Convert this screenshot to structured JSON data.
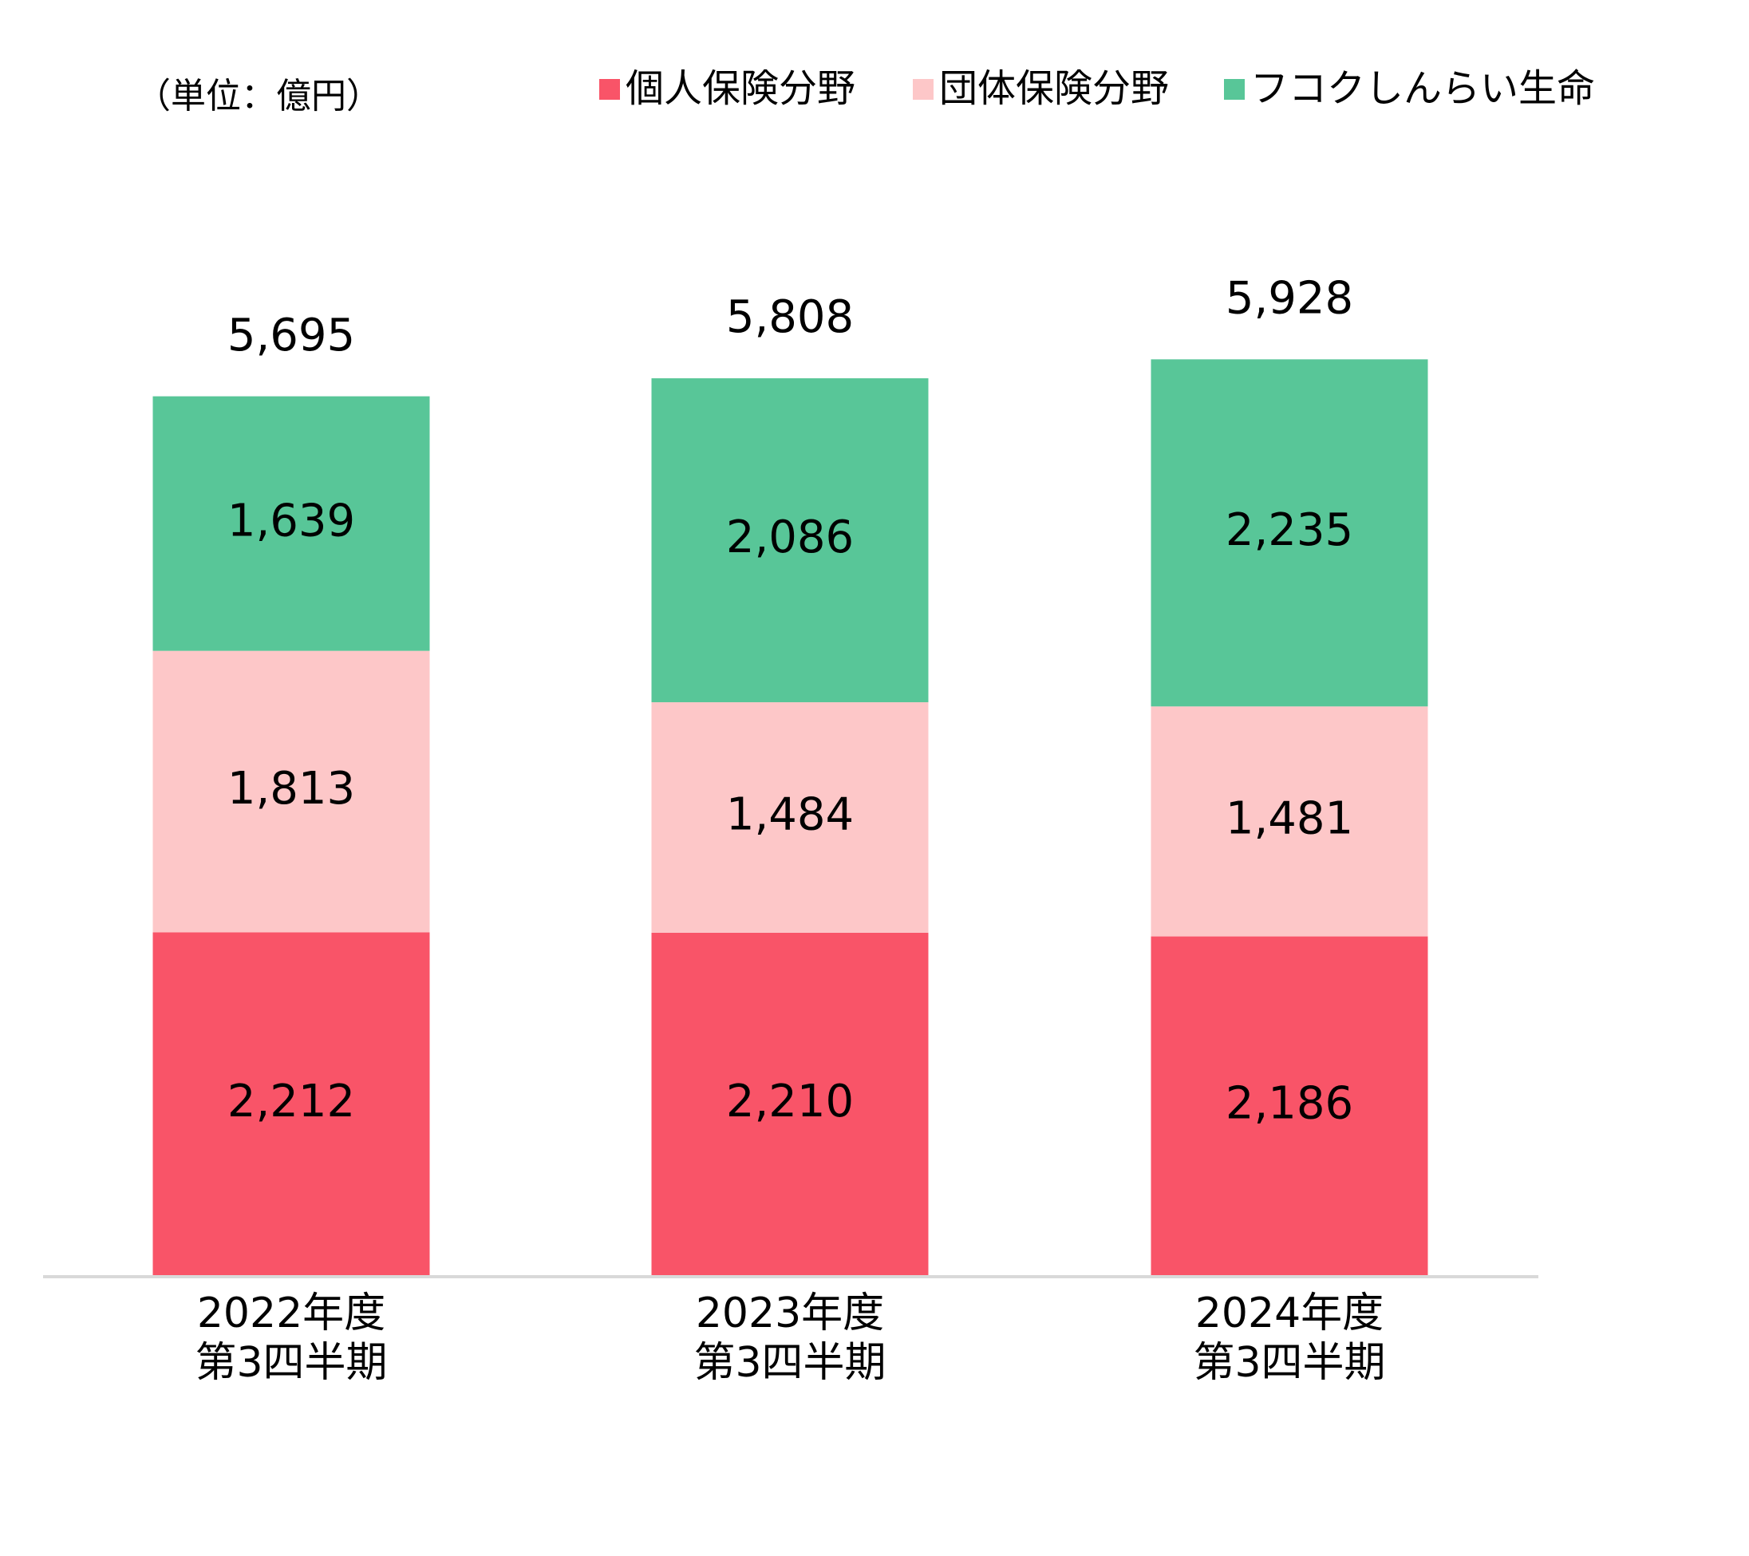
{
  "chart_data": {
    "type": "stacked-bar",
    "unit_label": "（単位：億円）",
    "categories": [
      "2022年度\n第3四半期",
      "2023年度\n第3四半期",
      "2024年度\n第3四半期"
    ],
    "series": [
      {
        "name": "個人保険分野",
        "color": "#f95468",
        "values": [
          2212,
          2210,
          2186
        ],
        "value_labels": [
          "2,212",
          "2,210",
          "2,186"
        ]
      },
      {
        "name": "団体保険分野",
        "color": "#fdc7c8",
        "values": [
          1813,
          1484,
          1481
        ],
        "value_labels": [
          "1,813",
          "1,484",
          "1,481"
        ]
      },
      {
        "name": "フコクしんらい生命",
        "color": "#58c698",
        "values": [
          1639,
          2086,
          2235
        ],
        "value_labels": [
          "1,639",
          "2,086",
          "2,235"
        ]
      }
    ],
    "totals": [
      5695,
      5808,
      5928
    ],
    "total_labels": [
      "5,695",
      "5,808",
      "5,928"
    ],
    "ylim": [
      0,
      8000
    ],
    "legend": "top"
  }
}
